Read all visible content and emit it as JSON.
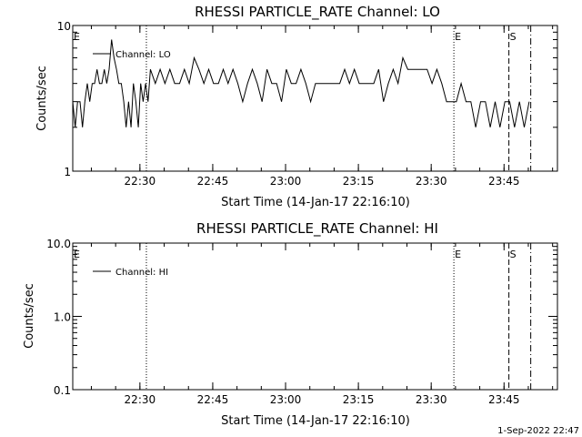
{
  "footer": {
    "timestamp": "1-Sep-2022 22:47"
  },
  "chart_data": [
    {
      "type": "line",
      "title": "RHESSI PARTICLE_RATE Channel: LO",
      "xlabel": "Start Time (14-Jan-17 22:16:10)",
      "ylabel": "Counts/sec",
      "yscale": "log",
      "ylim": [
        1,
        10
      ],
      "y_tick_labels": [
        "1",
        "10"
      ],
      "xlim": [
        "22:16:10",
        "23:56:00"
      ],
      "x_tick_labels": [
        "22:30",
        "22:45",
        "23:00",
        "23:15",
        "23:30",
        "23:45"
      ],
      "series": [
        {
          "name": "Channel: LO",
          "x": [
            "22:16:10",
            "22:16:40",
            "22:17:10",
            "22:17:40",
            "22:18:10",
            "22:18:40",
            "22:19:10",
            "22:19:40",
            "22:20:10",
            "22:20:40",
            "22:21:10",
            "22:21:40",
            "22:22:10",
            "22:22:40",
            "22:23:10",
            "22:23:40",
            "22:24:10",
            "22:24:40",
            "22:25:10",
            "22:25:40",
            "22:26:10",
            "22:26:40",
            "22:27:10",
            "22:27:40",
            "22:28:10",
            "22:28:40",
            "22:29:10",
            "22:29:40",
            "22:30:10",
            "22:30:40",
            "22:31:10",
            "22:31:40",
            "22:32:10",
            "22:33:10",
            "22:34:10",
            "22:35:10",
            "22:36:10",
            "22:37:10",
            "22:38:10",
            "22:39:10",
            "22:40:10",
            "22:41:10",
            "22:42:10",
            "22:43:10",
            "22:44:10",
            "22:45:10",
            "22:46:10",
            "22:47:10",
            "22:48:10",
            "22:49:10",
            "22:50:10",
            "22:51:10",
            "22:52:10",
            "22:53:10",
            "22:54:10",
            "22:55:10",
            "22:56:10",
            "22:57:10",
            "22:58:10",
            "22:59:10",
            "23:00:10",
            "23:01:10",
            "23:02:10",
            "23:03:10",
            "23:04:10",
            "23:05:10",
            "23:06:10",
            "23:07:10",
            "23:08:10",
            "23:09:10",
            "23:10:10",
            "23:11:10",
            "23:12:10",
            "23:13:10",
            "23:14:10",
            "23:15:10",
            "23:16:10",
            "23:17:10",
            "23:18:10",
            "23:19:10",
            "23:20:10",
            "23:21:10",
            "23:22:10",
            "23:23:10",
            "23:24:10",
            "23:25:10",
            "23:26:10",
            "23:27:10",
            "23:28:10",
            "23:29:10",
            "23:30:10",
            "23:31:10",
            "23:32:10",
            "23:33:10",
            "23:34:10",
            "23:35:10",
            "23:36:10",
            "23:37:10",
            "23:38:10",
            "23:39:10",
            "23:40:10",
            "23:41:10",
            "23:42:10",
            "23:43:10",
            "23:44:10",
            "23:45:10",
            "23:46:10",
            "23:47:10",
            "23:48:10",
            "23:49:10",
            "23:50:10"
          ],
          "y": [
            3,
            2,
            3,
            3,
            2,
            3,
            4,
            3,
            4,
            4,
            5,
            4,
            4,
            5,
            4,
            5,
            8,
            6,
            5,
            4,
            4,
            3,
            2,
            3,
            2,
            4,
            3,
            2,
            4,
            3,
            4,
            3,
            5,
            4,
            5,
            4,
            5,
            4,
            4,
            5,
            4,
            6,
            5,
            4,
            5,
            4,
            4,
            5,
            4,
            5,
            4,
            3,
            4,
            5,
            4,
            3,
            5,
            4,
            4,
            3,
            5,
            4,
            4,
            5,
            4,
            3,
            4,
            4,
            4,
            4,
            4,
            4,
            5,
            4,
            5,
            4,
            4,
            4,
            4,
            5,
            3,
            4,
            5,
            4,
            6,
            5,
            5,
            5,
            5,
            5,
            4,
            5,
            4,
            3,
            3,
            3,
            4,
            3,
            3,
            2,
            3,
            3,
            2,
            3,
            2,
            3,
            3,
            2,
            3,
            2,
            3
          ]
        }
      ],
      "markers": [
        {
          "label": "E",
          "time": "22:16:10",
          "style": "none"
        },
        {
          "label": "",
          "time": "22:31:20",
          "style": "dotted"
        },
        {
          "label": "E",
          "time": "23:34:40",
          "style": "dotted"
        },
        {
          "label": "S",
          "time": "23:46:00",
          "style": "dashed"
        },
        {
          "label": "",
          "time": "23:50:30",
          "style": "dashdot"
        }
      ]
    },
    {
      "type": "line",
      "title": "RHESSI PARTICLE_RATE Channel: HI",
      "xlabel": "Start Time (14-Jan-17 22:16:10)",
      "ylabel": "Counts/sec",
      "yscale": "log",
      "ylim": [
        0.1,
        10
      ],
      "y_tick_labels": [
        "0.1",
        "1.0",
        "10.0"
      ],
      "xlim": [
        "22:16:10",
        "23:56:00"
      ],
      "x_tick_labels": [
        "22:30",
        "22:45",
        "23:00",
        "23:15",
        "23:30",
        "23:45"
      ],
      "series": [
        {
          "name": "Channel: HI",
          "x": [],
          "y": []
        }
      ],
      "markers": [
        {
          "label": "E",
          "time": "22:16:10",
          "style": "none"
        },
        {
          "label": "",
          "time": "22:31:20",
          "style": "dotted"
        },
        {
          "label": "E",
          "time": "23:34:40",
          "style": "dotted"
        },
        {
          "label": "S",
          "time": "23:46:00",
          "style": "dashed"
        },
        {
          "label": "",
          "time": "23:50:30",
          "style": "dashdot"
        }
      ]
    }
  ]
}
